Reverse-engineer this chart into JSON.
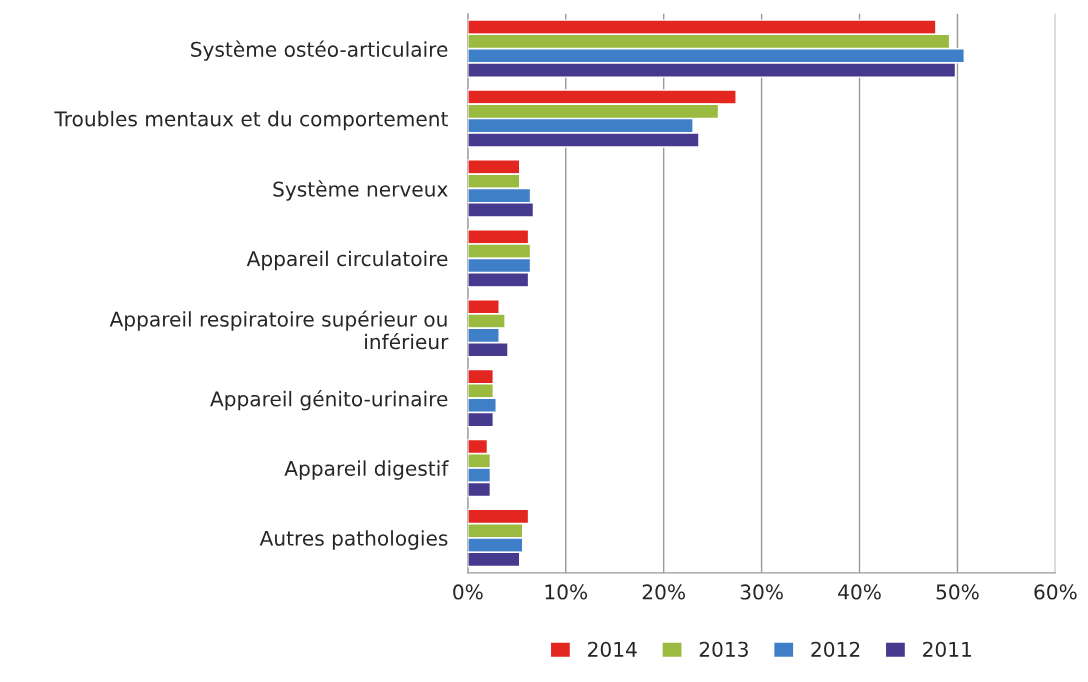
{
  "chart_data": {
    "type": "bar",
    "orientation": "horizontal",
    "categories": [
      "Système ostéo-articulaire",
      "Troubles mentaux et du comportement",
      "Système nerveux",
      "Appareil circulatoire",
      "Appareil respiratoire supérieur ou\ninférieur",
      "Appareil génito-urinaire",
      "Appareil digestif",
      "Autres pathologies"
    ],
    "series": [
      {
        "name": "2014",
        "color": "#e3261f",
        "values": [
          47.8,
          27.4,
          5.3,
          6.2,
          3.2,
          2.6,
          2.0,
          6.2
        ]
      },
      {
        "name": "2013",
        "color": "#9bbb40",
        "values": [
          49.2,
          25.6,
          5.3,
          6.4,
          3.8,
          2.6,
          2.3,
          5.6
        ]
      },
      {
        "name": "2012",
        "color": "#3f7fc8",
        "values": [
          50.7,
          23.0,
          6.4,
          6.4,
          3.2,
          2.9,
          2.3,
          5.6
        ]
      },
      {
        "name": "2011",
        "color": "#463a8e",
        "values": [
          49.8,
          23.6,
          6.7,
          6.2,
          4.1,
          2.6,
          2.3,
          5.3
        ]
      }
    ],
    "xlim": [
      0,
      60
    ],
    "xticks": [
      {
        "value": 0,
        "label": "0%"
      },
      {
        "value": 10,
        "label": "10%"
      },
      {
        "value": 20,
        "label": "20%"
      },
      {
        "value": 30,
        "label": "30%"
      },
      {
        "value": 40,
        "label": "40%"
      },
      {
        "value": 50,
        "label": "50%"
      },
      {
        "value": 60,
        "label": "60%"
      }
    ],
    "grid": "x",
    "legend": "bottom"
  }
}
